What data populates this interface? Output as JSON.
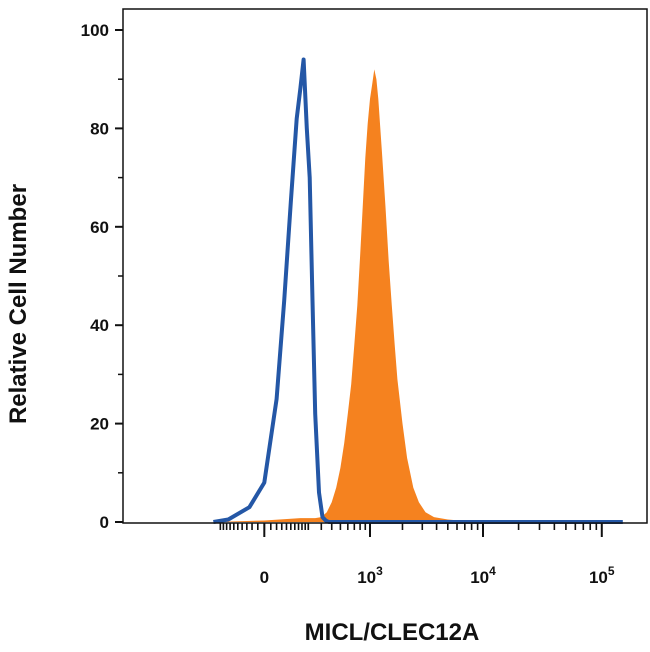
{
  "chart_data": {
    "type": "area",
    "xlabel": "MICL/CLEC12A",
    "ylabel": "Relative Cell Number",
    "x_scale": "biexponential",
    "ylim": [
      0,
      100
    ],
    "y_ticks": [
      0,
      20,
      40,
      60,
      80,
      100
    ],
    "x_ticks": [
      {
        "value": 0,
        "base": "0",
        "exp": ""
      },
      {
        "value": 1000,
        "base": "10",
        "exp": "3"
      },
      {
        "value": 10000,
        "base": "10",
        "exp": "4"
      },
      {
        "value": 100000,
        "base": "10",
        "exp": "5"
      }
    ],
    "grid": false,
    "legend": "none",
    "series": [
      {
        "style": "outline",
        "color": "#2457a6",
        "x": [
          -250,
          -150,
          -50,
          0,
          40,
          70,
          100,
          130,
          150,
          170,
          190,
          210,
          230,
          250,
          280,
          310,
          340,
          370,
          400,
          450,
          550,
          700,
          1000,
          10000,
          150000
        ],
        "y": [
          0,
          0.5,
          3,
          8,
          25,
          45,
          65,
          82,
          88,
          94,
          80,
          70,
          45,
          22,
          6,
          1,
          0.3,
          0,
          0,
          0,
          0,
          0,
          0,
          0,
          0
        ]
      },
      {
        "style": "filled",
        "color": "#f5821f",
        "x": [
          -250,
          0,
          150,
          250,
          300,
          350,
          400,
          450,
          500,
          550,
          600,
          650,
          700,
          750,
          800,
          850,
          900,
          950,
          1000,
          1050,
          1100,
          1150,
          1200,
          1300,
          1400,
          1500,
          1600,
          1700,
          1800,
          2000,
          2200,
          2500,
          2800,
          3200,
          3800,
          5000,
          7000,
          10000,
          150000
        ],
        "y": [
          0,
          0.3,
          0.8,
          0.8,
          1,
          2,
          4,
          7,
          11,
          16,
          22,
          28,
          36,
          44,
          54,
          64,
          74,
          81,
          86,
          89,
          92,
          90,
          86,
          75,
          64,
          53,
          44,
          36,
          29,
          20,
          13,
          7,
          4,
          2,
          1,
          0.5,
          0.2,
          0,
          0
        ]
      }
    ]
  }
}
